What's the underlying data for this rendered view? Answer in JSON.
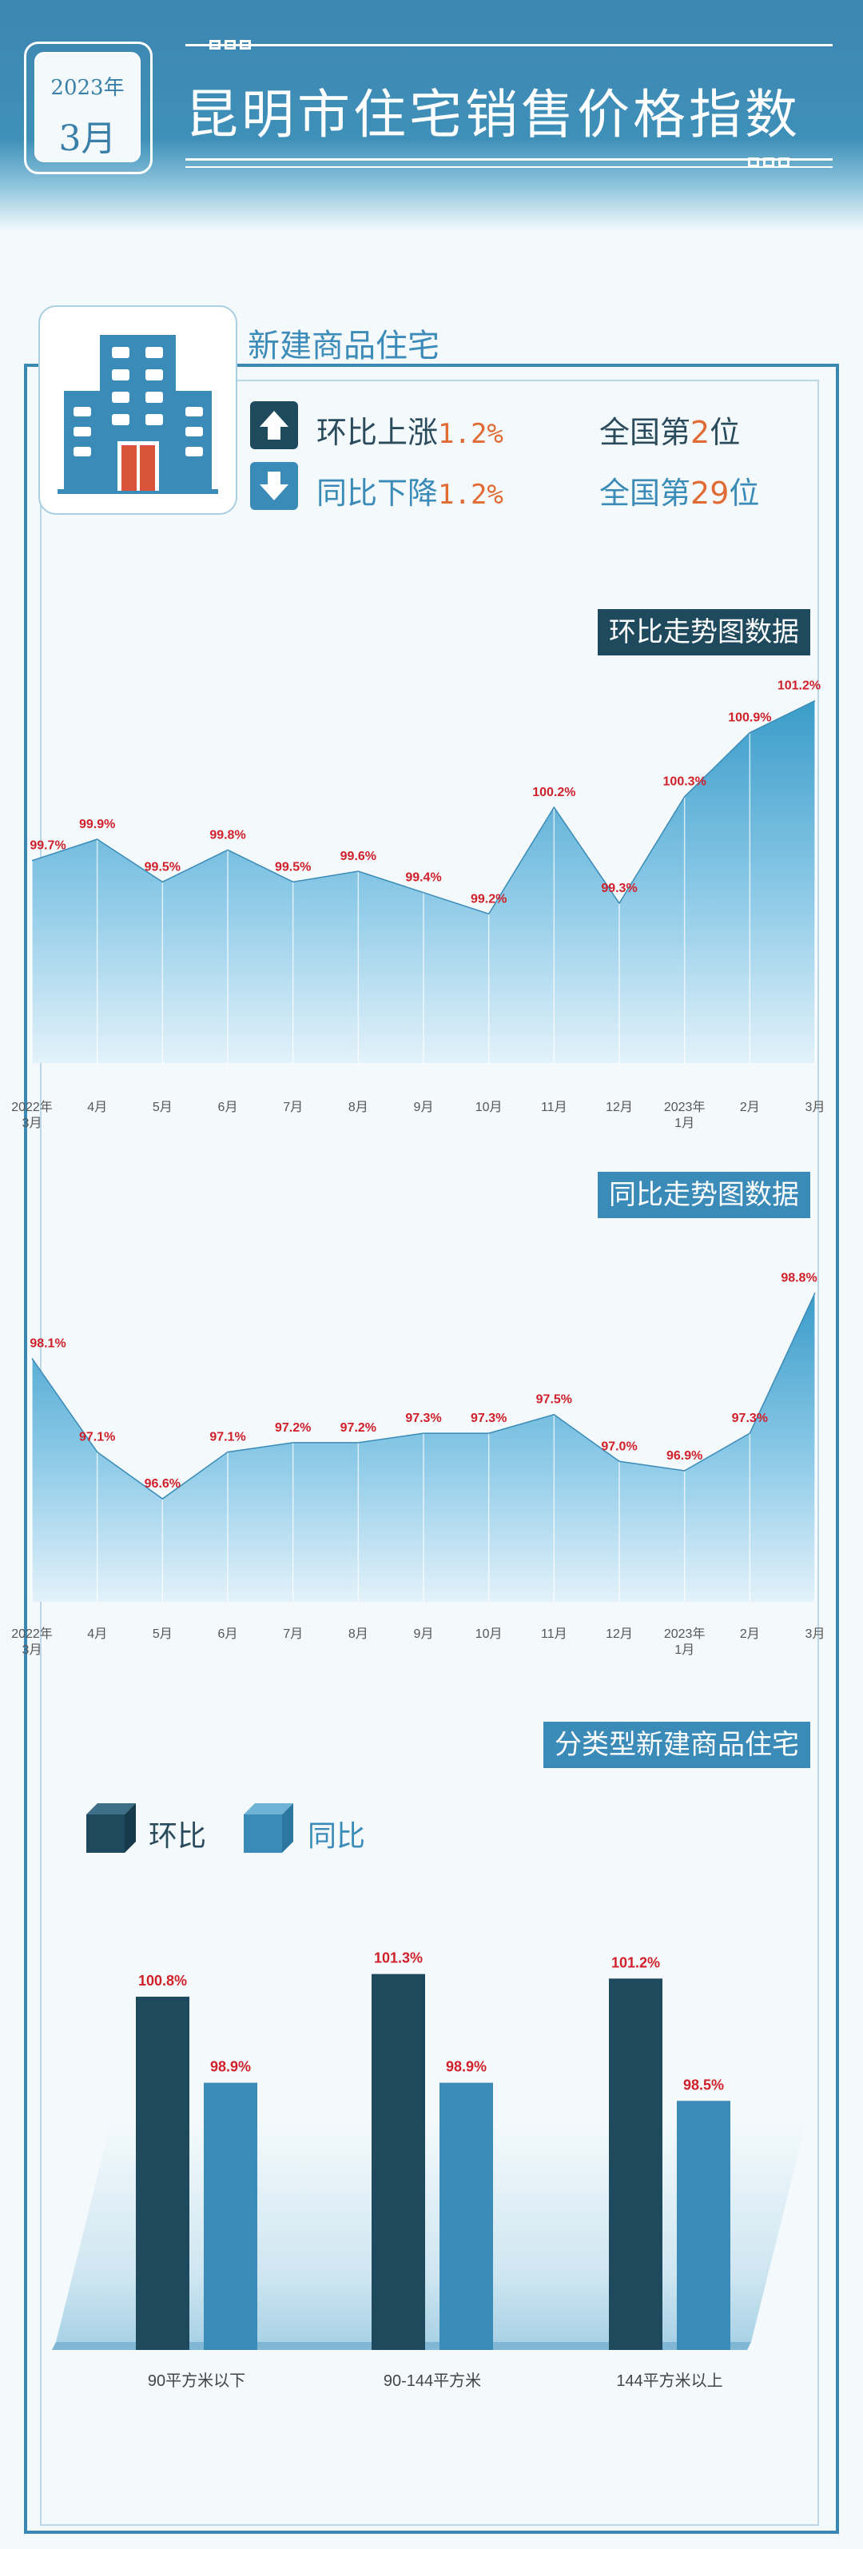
{
  "header": {
    "year": "2023年",
    "month": "3月",
    "title": "昆明市住宅销售价格指数"
  },
  "section": {
    "title": "新建商品住宅",
    "stats": [
      {
        "label": "环比上涨",
        "value": "1.2%",
        "rank_prefix": "全国第",
        "rank": "2",
        "rank_suffix": "位",
        "direction": "up"
      },
      {
        "label": "同比下降",
        "value": "1.2%",
        "rank_prefix": "全国第",
        "rank": "29",
        "rank_suffix": "位",
        "direction": "down"
      }
    ]
  },
  "colors": {
    "dark": "#1f4a5e",
    "light": "#3a8bb8",
    "red_label": "#d0202a",
    "accent": "#e06b35"
  },
  "chart_data": [
    {
      "type": "area",
      "title": "环比走势图数据",
      "categories": [
        "2022年3月",
        "4月",
        "5月",
        "6月",
        "7月",
        "8月",
        "9月",
        "10月",
        "11月",
        "12月",
        "2023年1月",
        "2月",
        "3月"
      ],
      "values": [
        99.7,
        99.9,
        99.5,
        99.8,
        99.5,
        99.6,
        99.4,
        99.2,
        100.2,
        99.3,
        100.3,
        100.9,
        101.2
      ],
      "value_labels": [
        "99.7%",
        "99.9%",
        "99.5%",
        "99.8%",
        "99.5%",
        "99.6%",
        "99.4%",
        "99.2%",
        "100.2%",
        "99.3%",
        "100.3%",
        "100.9%",
        "101.2%"
      ],
      "ylim": [
        97.8,
        101.4
      ]
    },
    {
      "type": "area",
      "title": "同比走势图数据",
      "categories": [
        "2022年3月",
        "4月",
        "5月",
        "6月",
        "7月",
        "8月",
        "9月",
        "10月",
        "11月",
        "12月",
        "2023年1月",
        "2月",
        "3月"
      ],
      "values": [
        98.1,
        97.1,
        96.6,
        97.1,
        97.2,
        97.2,
        97.3,
        97.3,
        97.5,
        97.0,
        96.9,
        97.3,
        98.8
      ],
      "value_labels": [
        "98.1%",
        "97.1%",
        "96.6%",
        "97.1%",
        "97.2%",
        "97.2%",
        "97.3%",
        "97.3%",
        "97.5%",
        "97.0%",
        "96.9%",
        "97.3%",
        "98.8%"
      ],
      "ylim": [
        95.5,
        99.0
      ]
    },
    {
      "type": "bar",
      "title": "分类型新建商品住宅",
      "categories": [
        "90平方米以下",
        "90-144平方米",
        "144平方米以上"
      ],
      "series": [
        {
          "name": "环比",
          "values": [
            100.8,
            101.3,
            101.2
          ],
          "labels": [
            "100.8%",
            "101.3%",
            "101.2%"
          ]
        },
        {
          "name": "同比",
          "values": [
            98.9,
            98.9,
            98.5
          ],
          "labels": [
            "98.9%",
            "98.9%",
            "98.5%"
          ]
        }
      ],
      "ylim": [
        93.0,
        102.0
      ]
    }
  ]
}
